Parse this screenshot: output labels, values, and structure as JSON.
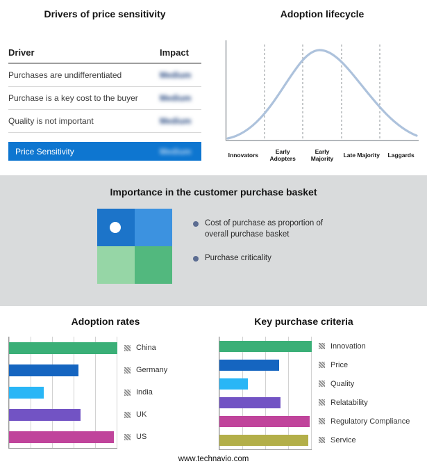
{
  "drivers_table": {
    "title": "Drivers of price sensitivity",
    "columns": {
      "driver": "Driver",
      "impact": "Impact"
    },
    "rows": [
      {
        "driver": "Purchases are undifferentiated",
        "impact": "Medium"
      },
      {
        "driver": "Purchase is a key cost to the buyer",
        "impact": "Medium"
      },
      {
        "driver": "Quality is not important",
        "impact": "Medium"
      }
    ],
    "summary_row": {
      "driver": "Price Sensitivity",
      "impact": "Medium"
    },
    "impact_values_blurred": true,
    "summary_row_color": "#0e76d0"
  },
  "adoption_lifecycle": {
    "title": "Adoption lifecycle",
    "stages": [
      "Innovators",
      "Early Adopters",
      "Early Majority",
      "Late Majority",
      "Laggards"
    ],
    "curve_color": "#adc2dc"
  },
  "purchase_basket": {
    "title": "Importance in the customer purchase basket",
    "legend": [
      "Cost of purchase as proportion of overall purchase basket",
      "Purchase criticality"
    ],
    "quadrant_colors": {
      "top_left": "#1c74c9",
      "top_right": "#3c92e0",
      "bottom_left": "#96d6a6",
      "bottom_right": "#52b87e"
    },
    "marker": "white dot in top-left quadrant"
  },
  "chart_data": [
    {
      "type": "bar",
      "orientation": "horizontal",
      "title": "Adoption rates",
      "categories": [
        "China",
        "Germany",
        "India",
        "UK",
        "US"
      ],
      "values": [
        100,
        64,
        32,
        66,
        97
      ],
      "colors": [
        "#3aaf77",
        "#1565c0",
        "#29b6f6",
        "#7253c4",
        "#c0449b"
      ],
      "xlim": [
        0,
        100
      ],
      "grid": true,
      "legend_position": "right"
    },
    {
      "type": "bar",
      "orientation": "horizontal",
      "title": "Key purchase criteria",
      "categories": [
        "Innovation",
        "Price",
        "Quality",
        "Relatability",
        "Regulatory Compliance",
        "Service"
      ],
      "values": [
        100,
        65,
        31,
        66,
        98,
        96
      ],
      "colors": [
        "#3aaf77",
        "#1565c0",
        "#29b6f6",
        "#7253c4",
        "#c0449b",
        "#b3af49"
      ],
      "xlim": [
        0,
        100
      ],
      "grid": true,
      "legend_position": "right"
    }
  ],
  "footer": {
    "url": "www.technavio.com"
  }
}
